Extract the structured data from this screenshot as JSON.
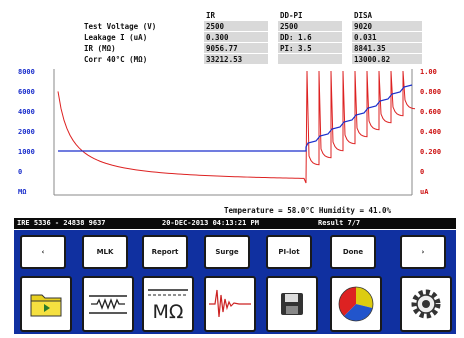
{
  "readout": {
    "headers": [
      "IR",
      "DD-PI",
      "DISA"
    ],
    "labels": [
      "Test Voltage (V)",
      "Leakage I (uA)",
      "IR (MΩ)",
      "Corr 40°C (MΩ)"
    ],
    "col1": [
      "2500",
      "0.300",
      "9056.77",
      "33212.53"
    ],
    "col2": [
      "2500",
      "DD: 1.6",
      "PI: 3.5",
      ""
    ],
    "col3": [
      "9020",
      "0.031",
      "8841.35",
      "13000.82"
    ]
  },
  "chart_data": {
    "type": "line",
    "left_axis": {
      "label": "MΩ",
      "ticks": [
        "8000",
        "6000",
        "4000",
        "2000",
        "1000",
        "0"
      ],
      "color": "#1a2fcc"
    },
    "right_axis": {
      "label": "uA",
      "ticks": [
        "1.00",
        "0.800",
        "0.600",
        "0.400",
        "0.200",
        "0"
      ],
      "color": "#cc1111"
    },
    "series": [
      {
        "color": "#cc1111"
      },
      {
        "color": "#1a2fcc"
      }
    ]
  },
  "env_line": "Temperature = 58.0°C   Humidity = 41.0%",
  "status": {
    "left": "IRE 5336 - 24838 9637",
    "mid": "20-DEC-2013 04:13:21 PM",
    "right": "Result 7/7"
  },
  "buttons": [
    "‹",
    "MLK",
    "Report",
    "Surge",
    "PI-lot",
    "Done",
    "›"
  ],
  "icons": [
    "folder-icon",
    "resistor-icon",
    "megohm-icon",
    "waveform-icon",
    "save-icon",
    "pie-chart-icon",
    "gear-icon"
  ],
  "megohm_text": "MΩ",
  "accent_color": "#1030a0"
}
